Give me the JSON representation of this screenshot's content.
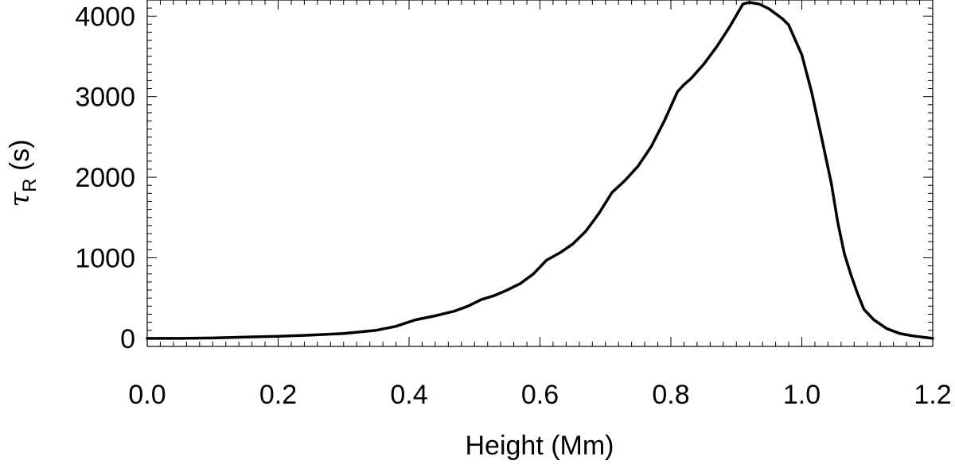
{
  "chart_data": {
    "type": "line",
    "title": "",
    "xlabel": "Height (Mm)",
    "ylabel_symbol": "τ",
    "ylabel_subscript": "R",
    "ylabel_unit": "(s)",
    "xlim": [
      0.0,
      1.2
    ],
    "ylim": [
      -100,
      4200
    ],
    "xticks": [
      0.0,
      0.2,
      0.4,
      0.6,
      0.8,
      1.0,
      1.2
    ],
    "xtick_labels": [
      "0.0",
      "0.2",
      "0.4",
      "0.6",
      "0.8",
      "1.0",
      "1.2"
    ],
    "yticks": [
      0,
      1000,
      2000,
      3000,
      4000
    ],
    "ytick_labels": [
      "0",
      "1000",
      "2000",
      "3000",
      "4000"
    ],
    "grid": false,
    "line_color": "#000000",
    "series": [
      {
        "x": [
          0.0,
          0.05,
          0.1,
          0.15,
          0.2,
          0.25,
          0.3,
          0.35,
          0.38,
          0.41,
          0.44,
          0.47,
          0.49,
          0.51,
          0.53,
          0.55,
          0.57,
          0.59,
          0.61,
          0.63,
          0.65,
          0.67,
          0.69,
          0.71,
          0.73,
          0.75,
          0.77,
          0.79,
          0.81,
          0.82,
          0.83,
          0.85,
          0.87,
          0.89,
          0.91,
          0.92,
          0.935,
          0.95,
          0.97,
          0.98,
          1.0,
          1.015,
          1.03,
          1.045,
          1.055,
          1.065,
          1.075,
          1.085,
          1.095,
          1.11,
          1.13,
          1.15,
          1.17,
          1.2
        ],
        "y": [
          0,
          0,
          5,
          15,
          25,
          40,
          60,
          100,
          150,
          230,
          280,
          340,
          400,
          480,
          530,
          600,
          680,
          800,
          970,
          1060,
          1170,
          1330,
          1550,
          1810,
          1960,
          2140,
          2380,
          2700,
          3060,
          3150,
          3220,
          3400,
          3620,
          3870,
          4150,
          4170,
          4150,
          4090,
          3970,
          3890,
          3520,
          3060,
          2500,
          1930,
          1440,
          1050,
          790,
          560,
          360,
          230,
          120,
          60,
          30,
          0
        ]
      }
    ]
  }
}
